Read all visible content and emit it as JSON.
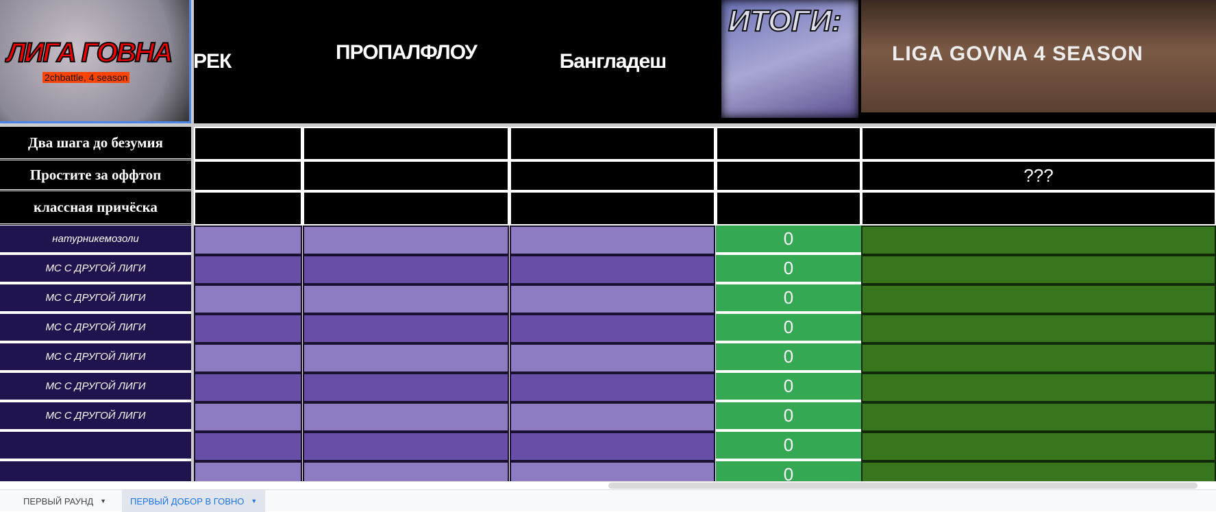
{
  "header": {
    "logo_title": "ЛИГА ГОВНА",
    "logo_subtitle": "2chbattle, 4 season",
    "columns": [
      "РЕК",
      "ПРОПАЛФЛОУ",
      "Бангладеш"
    ],
    "itogi": "ИТОГИ:",
    "banner": "LIGA GOVNA 4 SEASON"
  },
  "judges": [
    {
      "label": "Два шага до безумия",
      "total": ""
    },
    {
      "label": "Простите за оффтоп",
      "total": "???"
    },
    {
      "label": "классная причёска",
      "total": ""
    }
  ],
  "participants": [
    {
      "name": "натурникемозоли",
      "score": "0"
    },
    {
      "name": "МС С ДРУГОЙ ЛИГИ",
      "score": "0"
    },
    {
      "name": "МС С ДРУГОЙ ЛИГИ",
      "score": "0"
    },
    {
      "name": "МС С ДРУГОЙ ЛИГИ",
      "score": "0"
    },
    {
      "name": "МС С ДРУГОЙ ЛИГИ",
      "score": "0"
    },
    {
      "name": "МС С ДРУГОЙ ЛИГИ",
      "score": "0"
    },
    {
      "name": "МС С ДРУГОЙ ЛИГИ",
      "score": "0"
    },
    {
      "name": "",
      "score": "0"
    },
    {
      "name": "",
      "score": "0"
    }
  ],
  "colors": {
    "light_purple": "#8e7cc3",
    "dark_purple": "#674ea7",
    "score_green": "#34a853",
    "total_green": "#38761d",
    "name_bg": "#20124d"
  },
  "sheet_tabs": [
    {
      "label": "ПЕРВЫЙ РАУНД",
      "active": false
    },
    {
      "label": "ПЕРВЫЙ ДОБОР В ГОВНО",
      "active": true
    }
  ]
}
